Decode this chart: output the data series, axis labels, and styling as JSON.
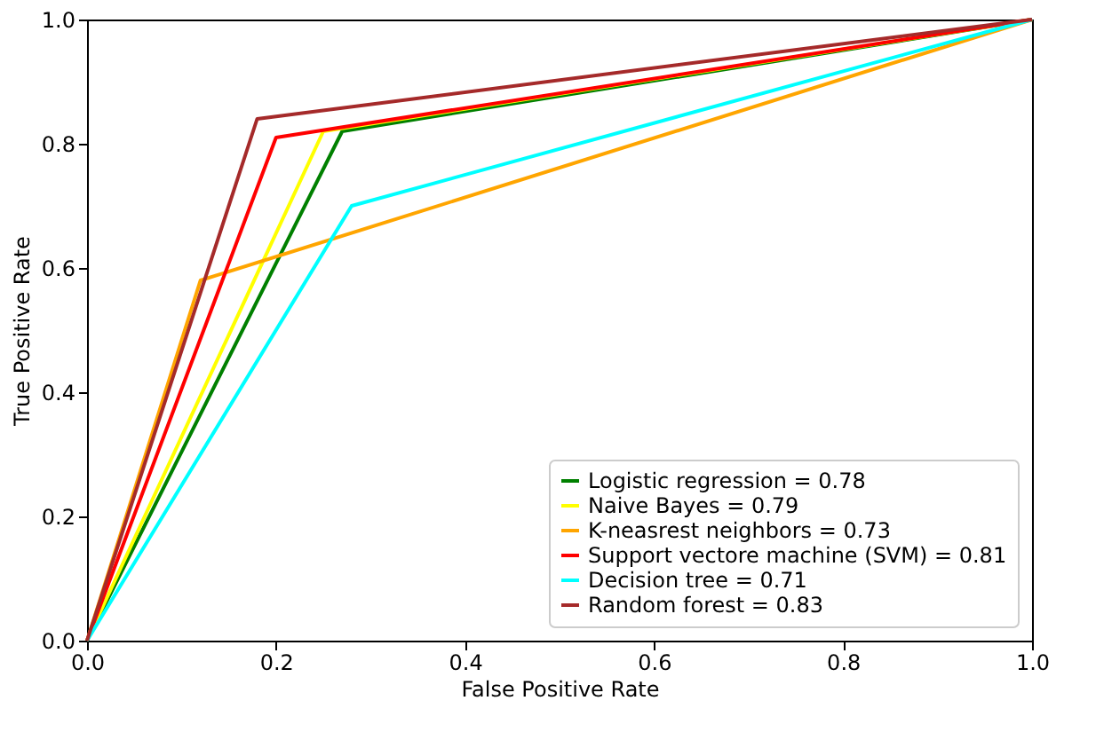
{
  "chart_data": {
    "type": "line",
    "xlabel": "False Positive Rate",
    "ylabel": "True Positive Rate",
    "xlim": [
      0,
      1
    ],
    "ylim": [
      0,
      1
    ],
    "xticks": [
      {
        "value": 0,
        "label": "0.0"
      },
      0.2,
      0.4,
      0.6,
      0.8,
      {
        "value": 1,
        "label": "1.0"
      }
    ],
    "yticks": [
      {
        "value": 0,
        "label": "0.0"
      },
      0.2,
      0.4,
      0.6,
      0.8,
      {
        "value": 1,
        "label": "1.0"
      }
    ],
    "grid": false,
    "legend": "bottom right",
    "marker": "none",
    "line_style": "solid",
    "series": [
      {
        "name": "Logistic regression = 0.78",
        "color": "#008000",
        "x": [
          0,
          0.27,
          1
        ],
        "values": [
          0,
          0.82,
          1
        ]
      },
      {
        "name": "Naive Bayes = 0.79",
        "color": "#ffff00",
        "x": [
          0,
          0.25,
          1
        ],
        "values": [
          0,
          0.82,
          1
        ]
      },
      {
        "name": "K-neasrest neighbors = 0.73",
        "color": "#ffa500",
        "x": [
          0,
          0.12,
          1
        ],
        "values": [
          0,
          0.58,
          1
        ]
      },
      {
        "name": "Support vectore machine (SVM) = 0.81",
        "color": "#ff0000",
        "x": [
          0,
          0.2,
          1
        ],
        "values": [
          0,
          0.81,
          1
        ]
      },
      {
        "name": "Decision tree = 0.71",
        "color": "#00ffff",
        "x": [
          0,
          0.28,
          1
        ],
        "values": [
          0,
          0.7,
          1
        ]
      },
      {
        "name": "Random forest = 0.83",
        "color": "#a52a2a",
        "x": [
          0,
          0.18,
          1
        ],
        "values": [
          0,
          0.84,
          1
        ]
      }
    ]
  }
}
